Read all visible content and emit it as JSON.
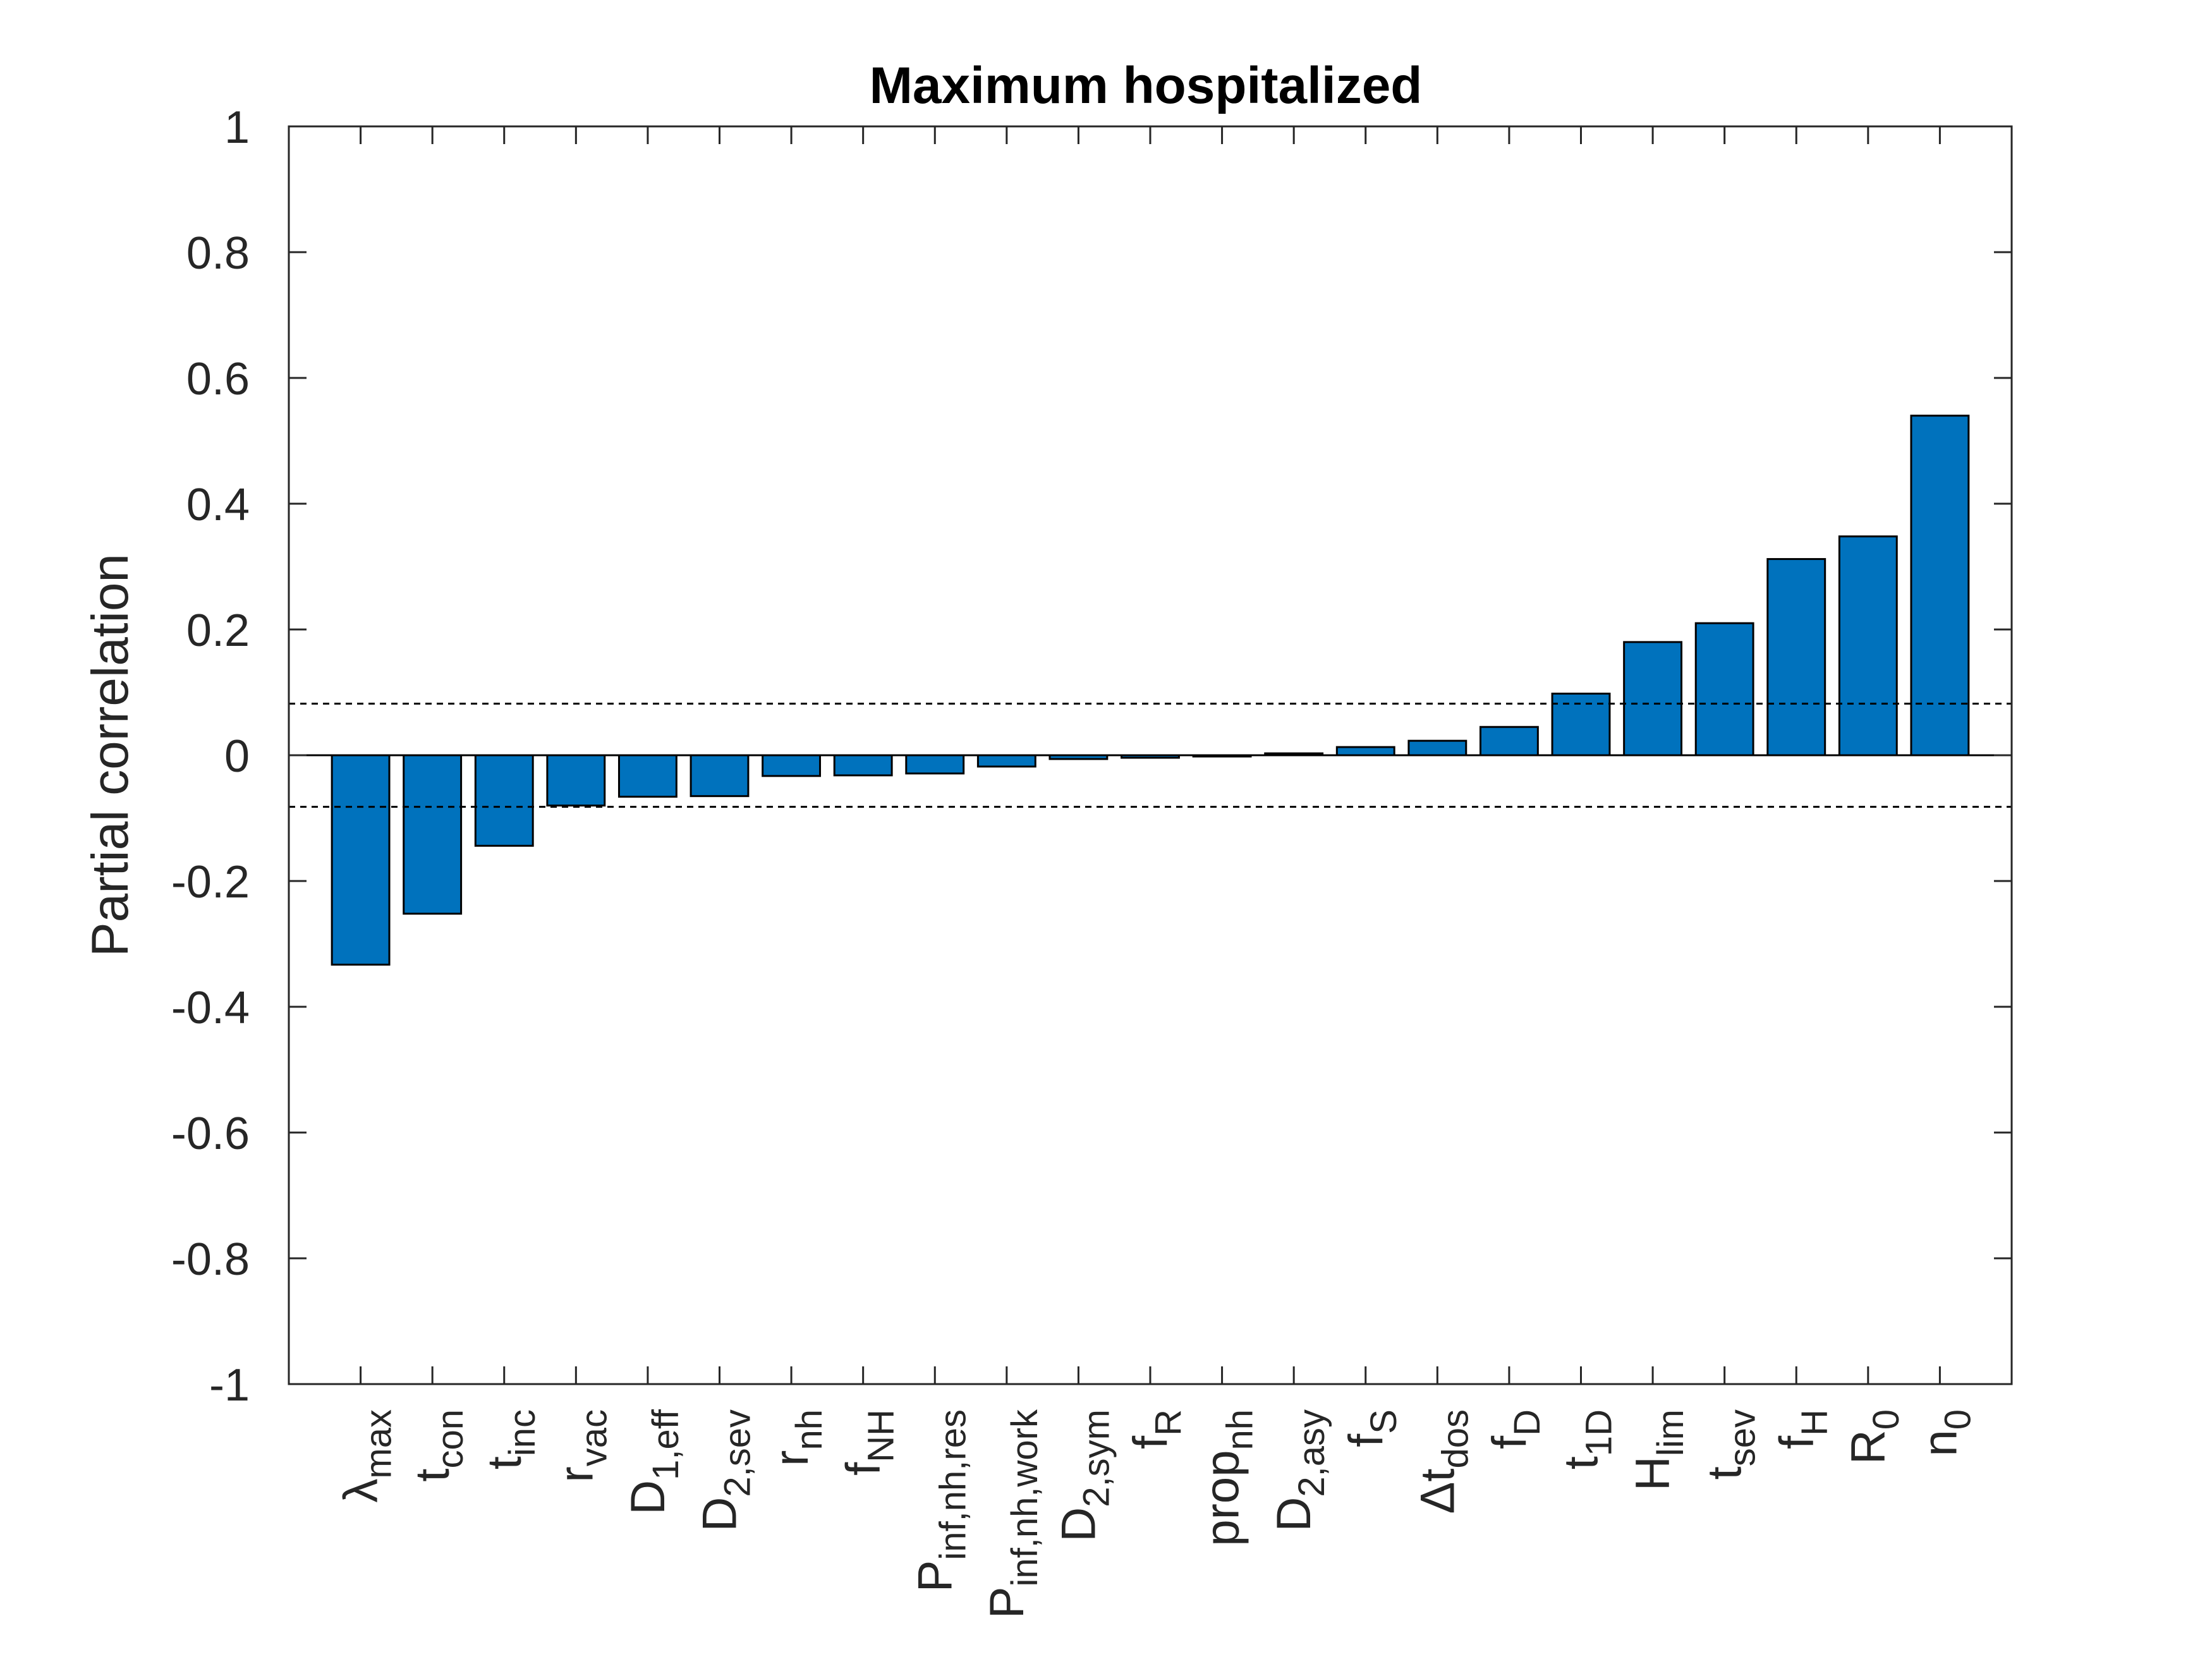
{
  "chart_data": {
    "type": "bar",
    "title": "Maximum hospitalized",
    "xlabel": "",
    "ylabel": "Partial correlation",
    "ylim": [
      -1,
      1
    ],
    "yticks": [
      "-1",
      "-0.8",
      "-0.6",
      "-0.4",
      "-0.2",
      "0",
      "0.2",
      "0.4",
      "0.6",
      "0.8",
      "1"
    ],
    "ytick_values": [
      -1,
      -0.8,
      -0.6,
      -0.4,
      -0.2,
      0,
      0.2,
      0.4,
      0.6,
      0.8,
      1
    ],
    "grid": false,
    "bar_color": "#0072BD",
    "threshold_lines": [
      0.082,
      -0.082
    ],
    "categories": [
      {
        "base": "λ",
        "sub": "max"
      },
      {
        "base": "t",
        "sub": "con"
      },
      {
        "base": "t",
        "sub": "inc"
      },
      {
        "base": "r",
        "sub": "vac"
      },
      {
        "base": "D",
        "sub": "1,eff"
      },
      {
        "base": "D",
        "sub": "2,sev"
      },
      {
        "base": "r",
        "sub": "nh"
      },
      {
        "base": "f",
        "sub": "NH"
      },
      {
        "base": "P",
        "sub": "inf,nh,res"
      },
      {
        "base": "P",
        "sub": "inf,nh,work"
      },
      {
        "base": "D",
        "sub": "2,sym"
      },
      {
        "base": "f",
        "sub": "R"
      },
      {
        "base": "prop",
        "sub": "nh"
      },
      {
        "base": "D",
        "sub": "2,asy"
      },
      {
        "base": "f",
        "sub": "S"
      },
      {
        "base": "Δt",
        "sub": "dos"
      },
      {
        "base": "f",
        "sub": "D"
      },
      {
        "base": "t",
        "sub": "1D"
      },
      {
        "base": "H",
        "sub": "lim"
      },
      {
        "base": "t",
        "sub": "sev"
      },
      {
        "base": "f",
        "sub": "H"
      },
      {
        "base": "R",
        "sub": "0"
      },
      {
        "base": "n",
        "sub": "0"
      }
    ],
    "values": [
      -0.333,
      -0.252,
      -0.144,
      -0.08,
      -0.066,
      -0.065,
      -0.033,
      -0.032,
      -0.029,
      -0.018,
      -0.006,
      -0.004,
      -0.002,
      0.003,
      0.013,
      0.023,
      0.045,
      0.098,
      0.18,
      0.21,
      0.312,
      0.348,
      0.54
    ]
  }
}
